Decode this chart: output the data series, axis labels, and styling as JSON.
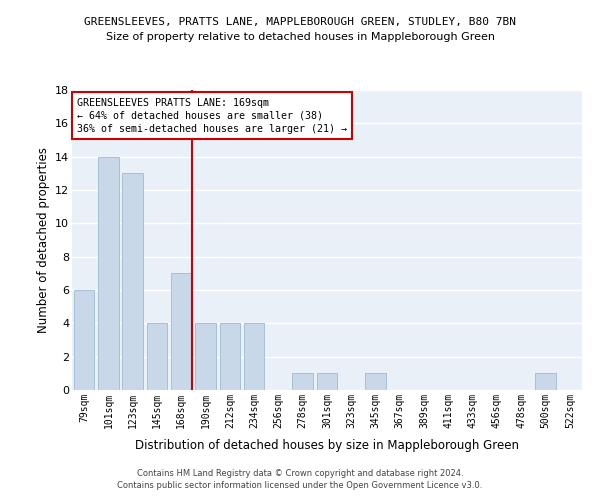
{
  "title1": "GREENSLEEVES, PRATTS LANE, MAPPLEBOROUGH GREEN, STUDLEY, B80 7BN",
  "title2": "Size of property relative to detached houses in Mappleborough Green",
  "xlabel": "Distribution of detached houses by size in Mappleborough Green",
  "ylabel": "Number of detached properties",
  "categories": [
    "79sqm",
    "101sqm",
    "123sqm",
    "145sqm",
    "168sqm",
    "190sqm",
    "212sqm",
    "234sqm",
    "256sqm",
    "278sqm",
    "301sqm",
    "323sqm",
    "345sqm",
    "367sqm",
    "389sqm",
    "411sqm",
    "433sqm",
    "456sqm",
    "478sqm",
    "500sqm",
    "522sqm"
  ],
  "values": [
    6,
    14,
    13,
    4,
    7,
    4,
    4,
    4,
    0,
    1,
    1,
    0,
    1,
    0,
    0,
    0,
    0,
    0,
    0,
    1,
    0
  ],
  "bar_color": "#c8d8e8",
  "bar_edge_color": "#a8c0d4",
  "vline_color": "#cc0000",
  "annotation_line1": "GREENSLEEVES PRATTS LANE: 169sqm",
  "annotation_line2": "← 64% of detached houses are smaller (38)",
  "annotation_line3": "36% of semi-detached houses are larger (21) →",
  "annotation_box_color": "#ffffff",
  "annotation_box_edge_color": "#cc0000",
  "ylim": [
    0,
    18
  ],
  "yticks": [
    0,
    2,
    4,
    6,
    8,
    10,
    12,
    14,
    16,
    18
  ],
  "background_color": "#eaf0f8",
  "grid_color": "#ffffff",
  "footer": "Contains HM Land Registry data © Crown copyright and database right 2024.\nContains public sector information licensed under the Open Government Licence v3.0."
}
